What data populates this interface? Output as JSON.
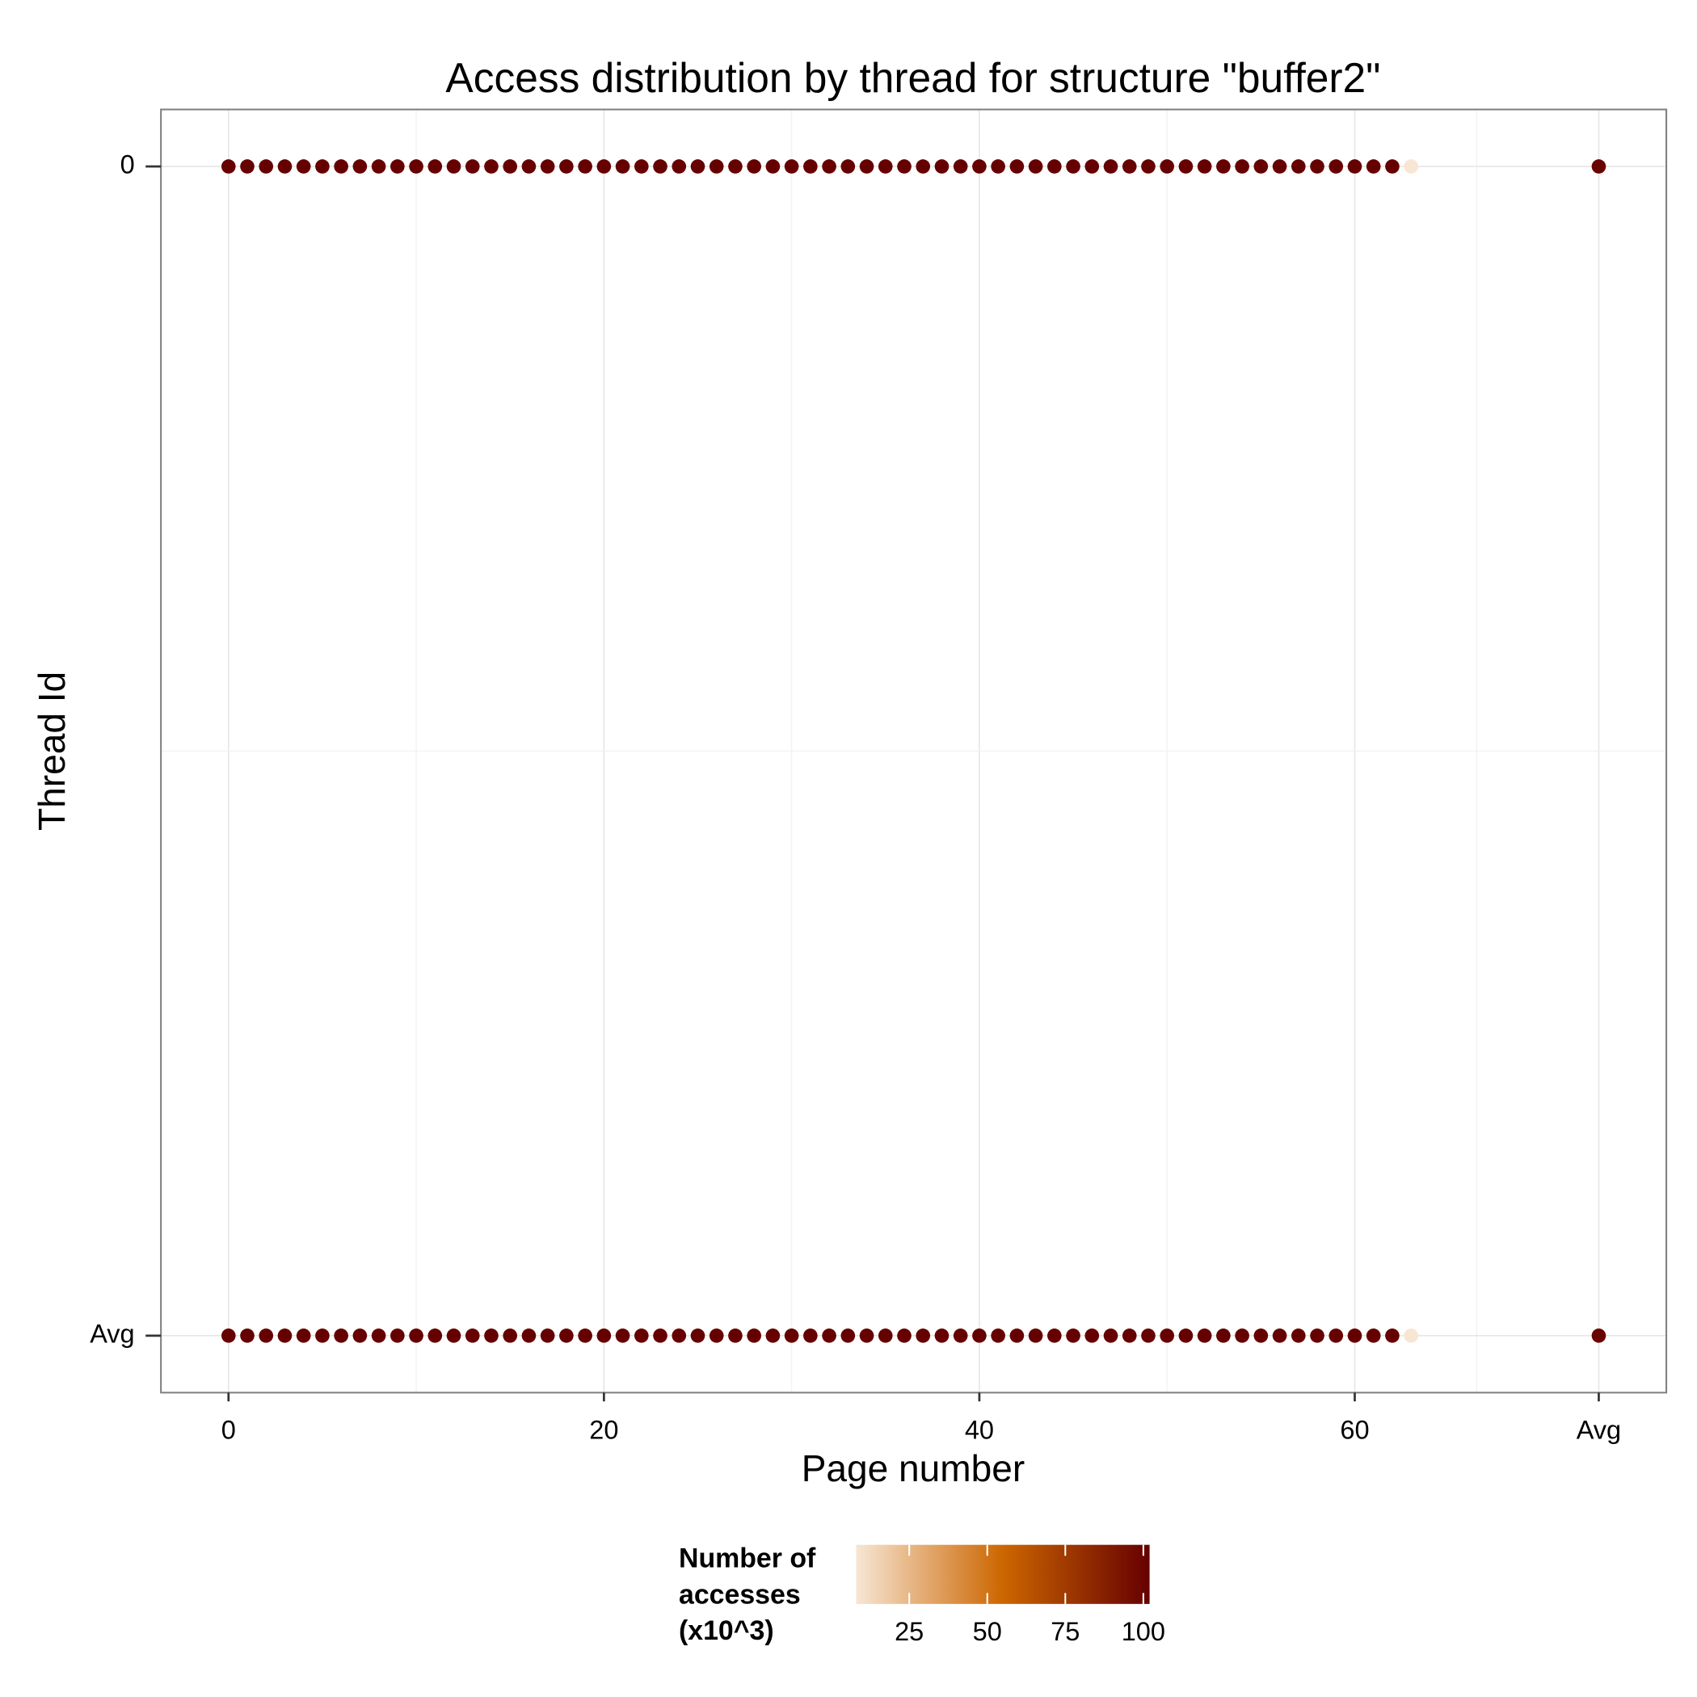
{
  "chart_data": {
    "type": "scatter",
    "title": "Access distribution by thread for structure \"buffer2\"",
    "x_label": "Page number",
    "y_label": "Thread Id",
    "x": [
      0,
      1,
      2,
      3,
      4,
      5,
      6,
      7,
      8,
      9,
      10,
      11,
      12,
      13,
      14,
      15,
      16,
      17,
      18,
      19,
      20,
      21,
      22,
      23,
      24,
      25,
      26,
      27,
      28,
      29,
      30,
      31,
      32,
      33,
      34,
      35,
      36,
      37,
      38,
      39,
      40,
      41,
      42,
      43,
      44,
      45,
      46,
      47,
      48,
      49,
      50,
      51,
      52,
      53,
      54,
      55,
      56,
      57,
      58,
      59,
      60,
      61,
      62,
      63,
      73
    ],
    "xlim": [
      -3.6,
      76.6
    ],
    "xticks": [
      0,
      20,
      40,
      60,
      {
        "value": 73,
        "label": "Avg"
      }
    ],
    "y_categories": [
      "0",
      "Avg"
    ],
    "rows": [
      {
        "values": [
          102,
          102,
          102,
          102,
          102,
          102,
          102,
          102,
          102,
          102,
          102,
          102,
          102,
          102,
          102,
          102,
          102,
          102,
          102,
          102,
          102,
          102,
          102,
          102,
          102,
          102,
          102,
          102,
          102,
          102,
          102,
          102,
          102,
          102,
          102,
          102,
          102,
          102,
          102,
          102,
          102,
          102,
          102,
          102,
          102,
          102,
          102,
          102,
          102,
          102,
          102,
          102,
          102,
          102,
          102,
          102,
          102,
          102,
          102,
          102,
          102,
          102,
          102,
          8,
          100.5
        ]
      },
      {
        "values": [
          102,
          102,
          102,
          102,
          102,
          102,
          102,
          102,
          102,
          102,
          102,
          102,
          102,
          102,
          102,
          102,
          102,
          102,
          102,
          102,
          102,
          102,
          102,
          102,
          102,
          102,
          102,
          102,
          102,
          102,
          102,
          102,
          102,
          102,
          102,
          102,
          102,
          102,
          102,
          102,
          102,
          102,
          102,
          102,
          102,
          102,
          102,
          102,
          102,
          102,
          102,
          102,
          102,
          102,
          102,
          102,
          102,
          102,
          102,
          102,
          102,
          102,
          102,
          8,
          100.5
        ]
      }
    ],
    "color_scale": {
      "title": [
        "Number of",
        "accesses",
        "(x10^3)"
      ],
      "limits": [
        8,
        102
      ],
      "ticks": [
        25,
        50,
        75,
        100
      ],
      "colors": [
        "#f7e6d4",
        "#cc6600",
        "#660000"
      ]
    },
    "grid": true
  }
}
